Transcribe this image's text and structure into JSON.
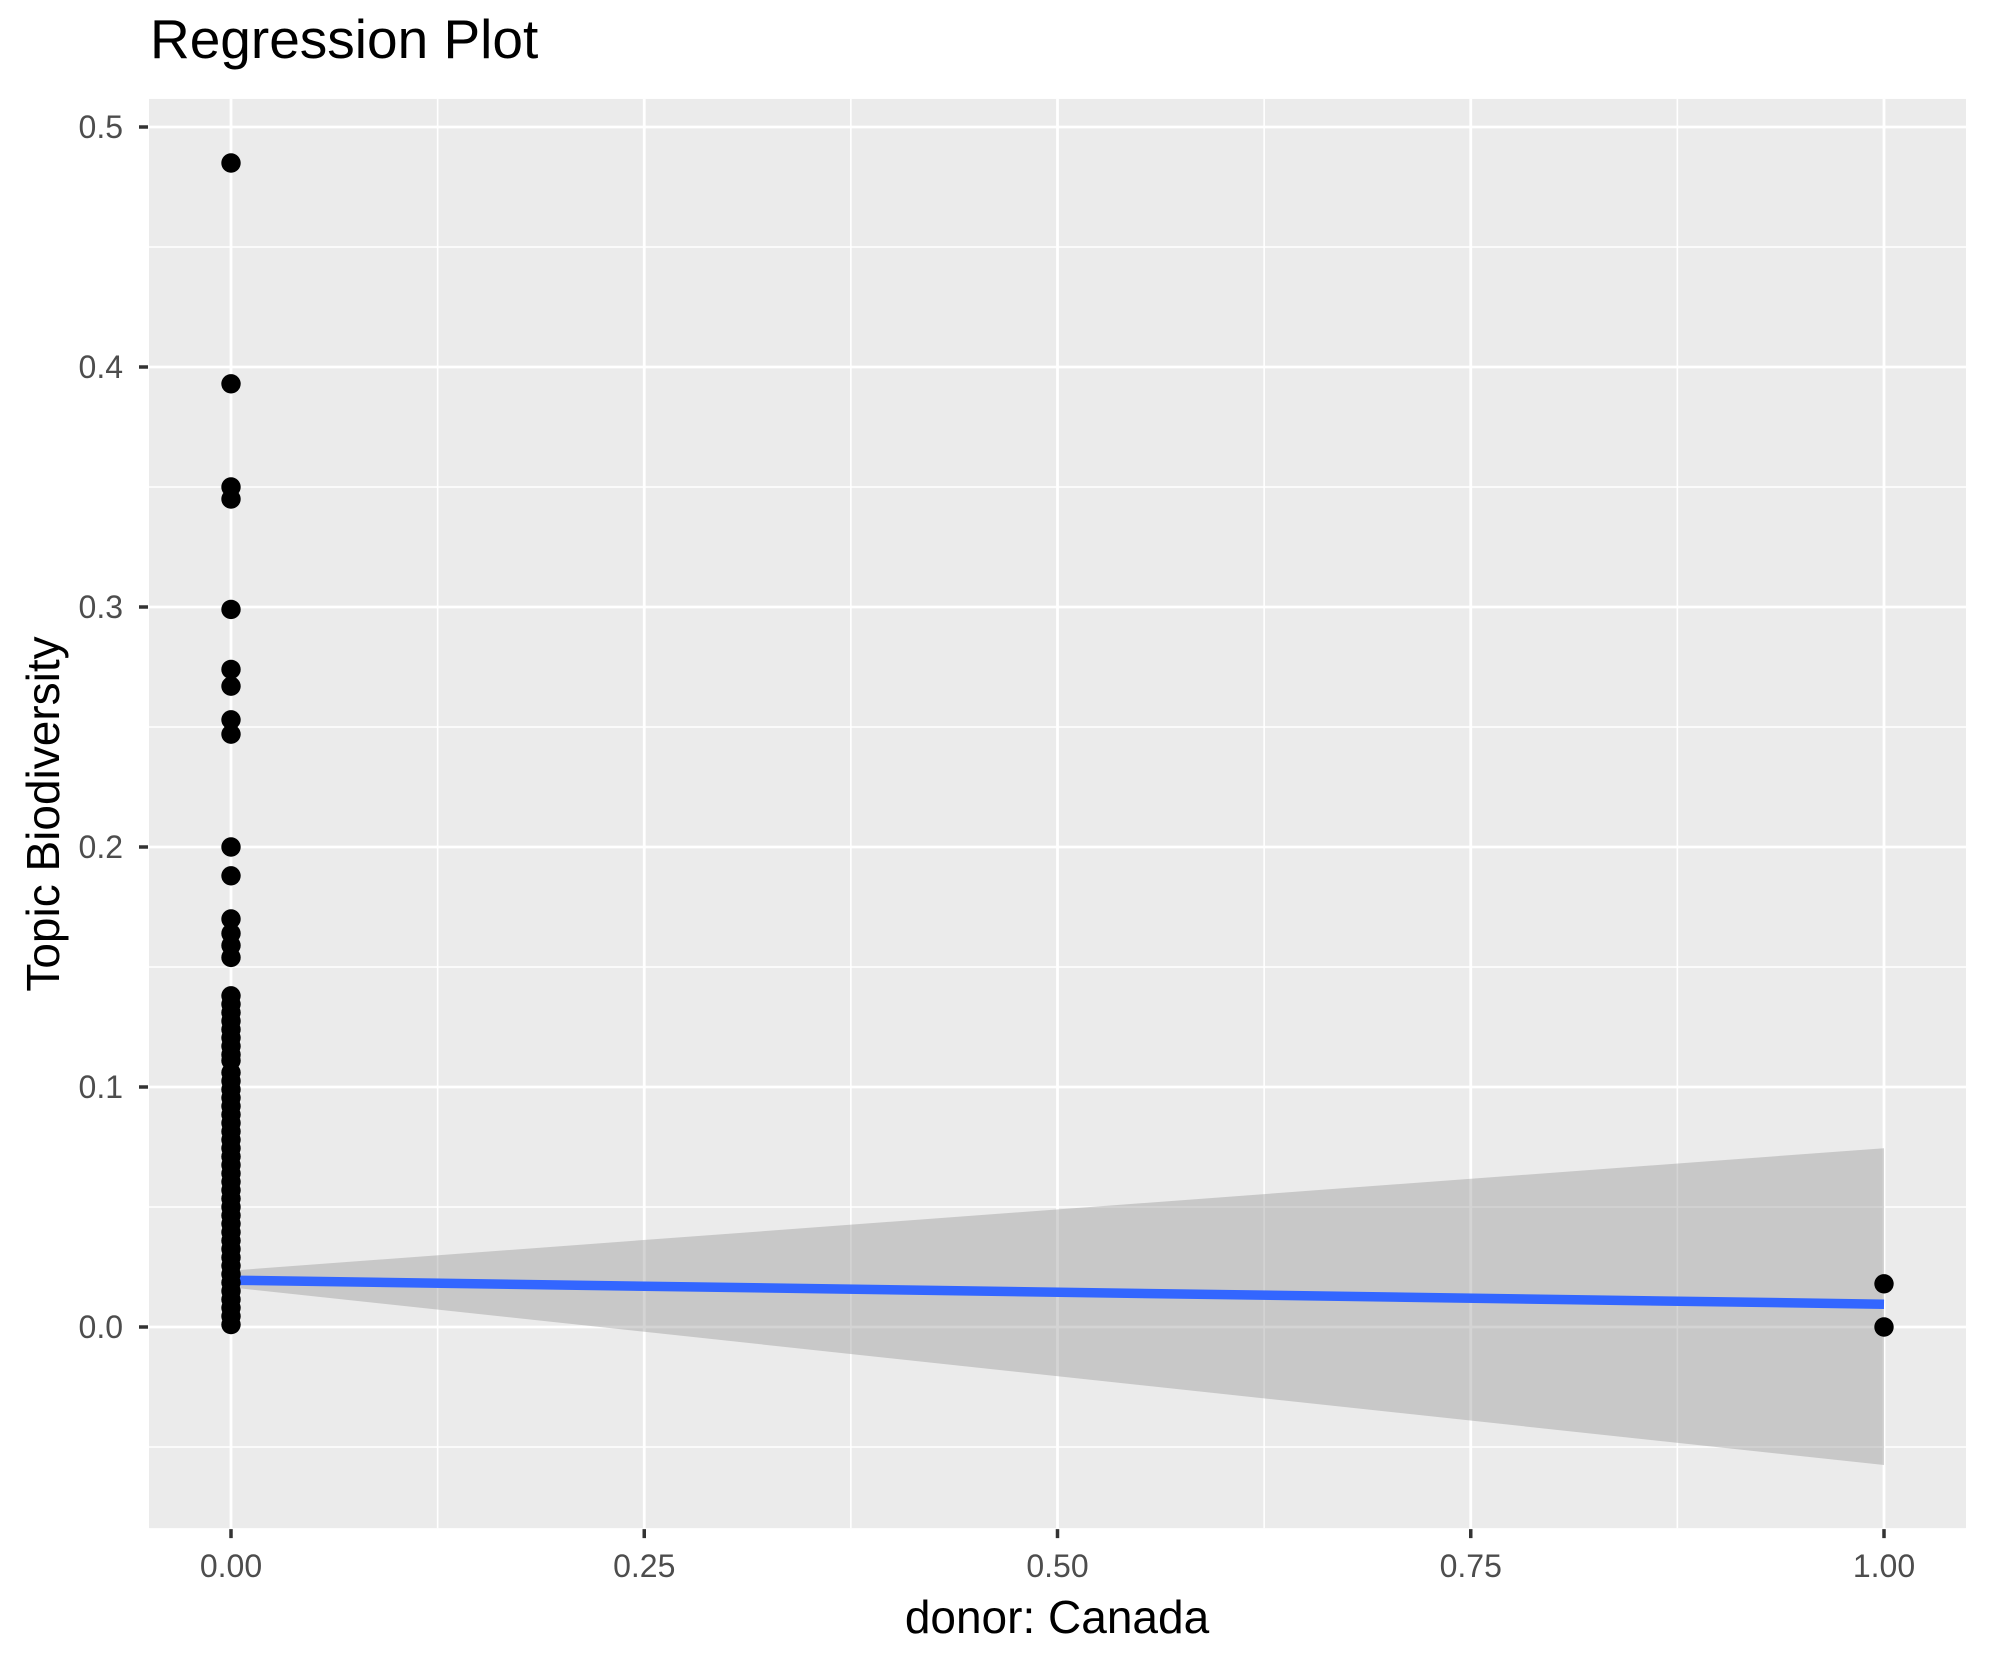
{
  "chart_data": {
    "type": "scatter",
    "title": "Regression Plot",
    "xlabel": "donor: Canada",
    "ylabel": "Topic Biodiversity",
    "xlim": [
      -0.0496,
      1.0496
    ],
    "ylim": [
      -0.0838,
      0.5117
    ],
    "grid": true,
    "legend": "none",
    "x_ticks": {
      "values": [
        0.0,
        0.25,
        0.5,
        0.75,
        1.0
      ],
      "labels": [
        "0.00",
        "0.25",
        "0.50",
        "0.75",
        "1.00"
      ]
    },
    "y_ticks": {
      "values": [
        0.0,
        0.1,
        0.2,
        0.3,
        0.4,
        0.5
      ],
      "labels": [
        "0.0",
        "0.1",
        "0.2",
        "0.3",
        "0.4",
        "0.5"
      ]
    },
    "x_minor": [
      0.125,
      0.375,
      0.625,
      0.875
    ],
    "y_minor": [
      -0.05,
      0.05,
      0.15,
      0.25,
      0.35,
      0.45
    ],
    "points": [
      [
        0,
        0.485
      ],
      [
        0,
        0.393
      ],
      [
        0,
        0.35
      ],
      [
        0,
        0.345
      ],
      [
        0,
        0.299
      ],
      [
        0,
        0.274
      ],
      [
        0,
        0.267
      ],
      [
        0,
        0.253
      ],
      [
        0,
        0.247
      ],
      [
        0,
        0.2
      ],
      [
        0,
        0.188
      ],
      [
        0,
        0.17
      ],
      [
        0,
        0.164
      ],
      [
        0,
        0.159
      ],
      [
        0,
        0.154
      ],
      [
        0,
        0.138
      ],
      [
        0,
        0.1345
      ],
      [
        0,
        0.131
      ],
      [
        0,
        0.1275
      ],
      [
        0,
        0.124
      ],
      [
        0,
        0.1205
      ],
      [
        0,
        0.117
      ],
      [
        0,
        0.1135
      ],
      [
        0,
        0.111
      ],
      [
        0,
        0.106
      ],
      [
        0,
        0.1025
      ],
      [
        0,
        0.099
      ],
      [
        0,
        0.0955
      ],
      [
        0,
        0.092
      ],
      [
        0,
        0.0885
      ],
      [
        0,
        0.085
      ],
      [
        0,
        0.0815
      ],
      [
        0,
        0.078
      ],
      [
        0,
        0.0745
      ],
      [
        0,
        0.071
      ],
      [
        0,
        0.0675
      ],
      [
        0,
        0.064
      ],
      [
        0,
        0.0605
      ],
      [
        0,
        0.057
      ],
      [
        0,
        0.0535
      ],
      [
        0,
        0.05
      ],
      [
        0,
        0.0465
      ],
      [
        0,
        0.043
      ],
      [
        0,
        0.0395
      ],
      [
        0,
        0.036
      ],
      [
        0,
        0.0325
      ],
      [
        0,
        0.029
      ],
      [
        0,
        0.0255
      ],
      [
        0,
        0.022
      ],
      [
        0,
        0.0185
      ],
      [
        0,
        0.015
      ],
      [
        0,
        0.0115
      ],
      [
        0,
        0.008
      ],
      [
        0,
        0.0045
      ],
      [
        0,
        0.001
      ],
      [
        1,
        0.018
      ],
      [
        1,
        0.0
      ]
    ],
    "regression_line": {
      "x1": 0,
      "y1": 0.0195,
      "x2": 1,
      "y2": 0.0095
    },
    "confidence_band": {
      "x": [
        0,
        1
      ],
      "upper": [
        0.0235,
        0.0745
      ],
      "lower": [
        0.0165,
        -0.0575
      ]
    }
  },
  "style": {
    "background": "#FFFFFF",
    "panel_bg": "#EBEBEB",
    "grid_color": "#FFFFFF",
    "point_color": "#000000",
    "line_color": "#3366FF",
    "band_color": "#999999",
    "band_opacity": 0.42,
    "tick_label_color": "#4D4D4D",
    "tick_mark_color": "#333333",
    "axis_title_color": "#000000",
    "title_color": "#000000"
  }
}
